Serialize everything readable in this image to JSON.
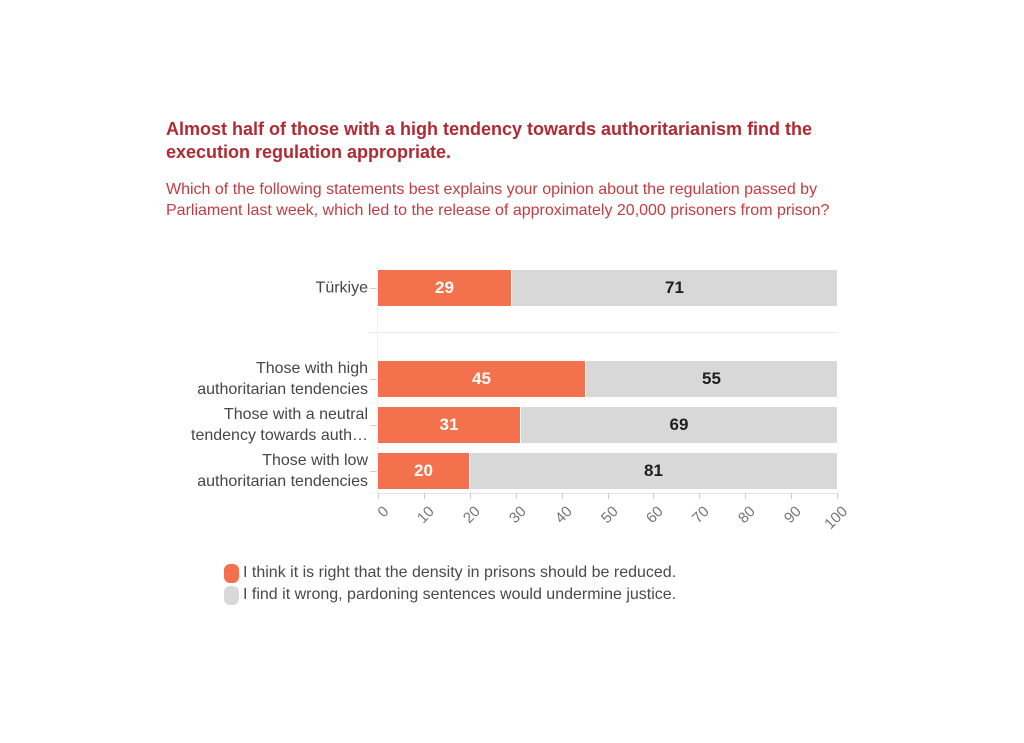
{
  "chart_data": {
    "type": "bar",
    "orientation": "horizontal",
    "stacked": true,
    "title": "Almost half of those with a high tendency towards authoritarianism find the execution regulation appropriate.",
    "subtitle": "Which of the following statements best explains your opinion about the regulation passed by Parliament last week, which led to the release of approximately 20,000 prisoners from prison?",
    "categories": [
      "Türkiye",
      "Those with high authoritarian tendencies",
      "Those with a neutral tendency towards auth…",
      "Those with low authoritarian tendencies"
    ],
    "series": [
      {
        "name": "I think it is right that the density in prisons should be reduced.",
        "color": "#F4714D",
        "values": [
          29,
          45,
          31,
          20
        ]
      },
      {
        "name": "I find it wrong, pardoning sentences would undermine justice.",
        "color": "#D8D8D8",
        "values": [
          71,
          55,
          69,
          81
        ]
      }
    ],
    "x_ticks": [
      0,
      10,
      20,
      30,
      40,
      50,
      60,
      70,
      80,
      90,
      100
    ],
    "xlim": [
      0,
      100
    ],
    "grid": false,
    "xlabel": "",
    "ylabel": "",
    "legend_position": "bottom"
  },
  "legend": {
    "items": [
      {
        "label": "I think it is right that the density in prisons should be reduced.",
        "color": "#F4714D"
      },
      {
        "label": "I find it wrong, pardoning sentences would undermine justice.",
        "color": "#D8D8D8"
      }
    ]
  },
  "colors": {
    "title": "#B02A33",
    "subtitle": "#C23C42",
    "bar_primary": "#F4714D",
    "bar_secondary": "#D8D8D8",
    "value_on_primary": "#FFFEF9",
    "value_on_secondary": "#1E1E1E",
    "category_label": "#45464B",
    "tick_label": "#757575",
    "axis_baseline": "#E3E3E3",
    "axis_tick": "#CDCDCD",
    "separator": "#EAEAEA",
    "category_tick": "#CFCFCF",
    "plot_left_line": "#EFEFEF",
    "legend_text": "#494949",
    "background": "#FFFFFF"
  }
}
